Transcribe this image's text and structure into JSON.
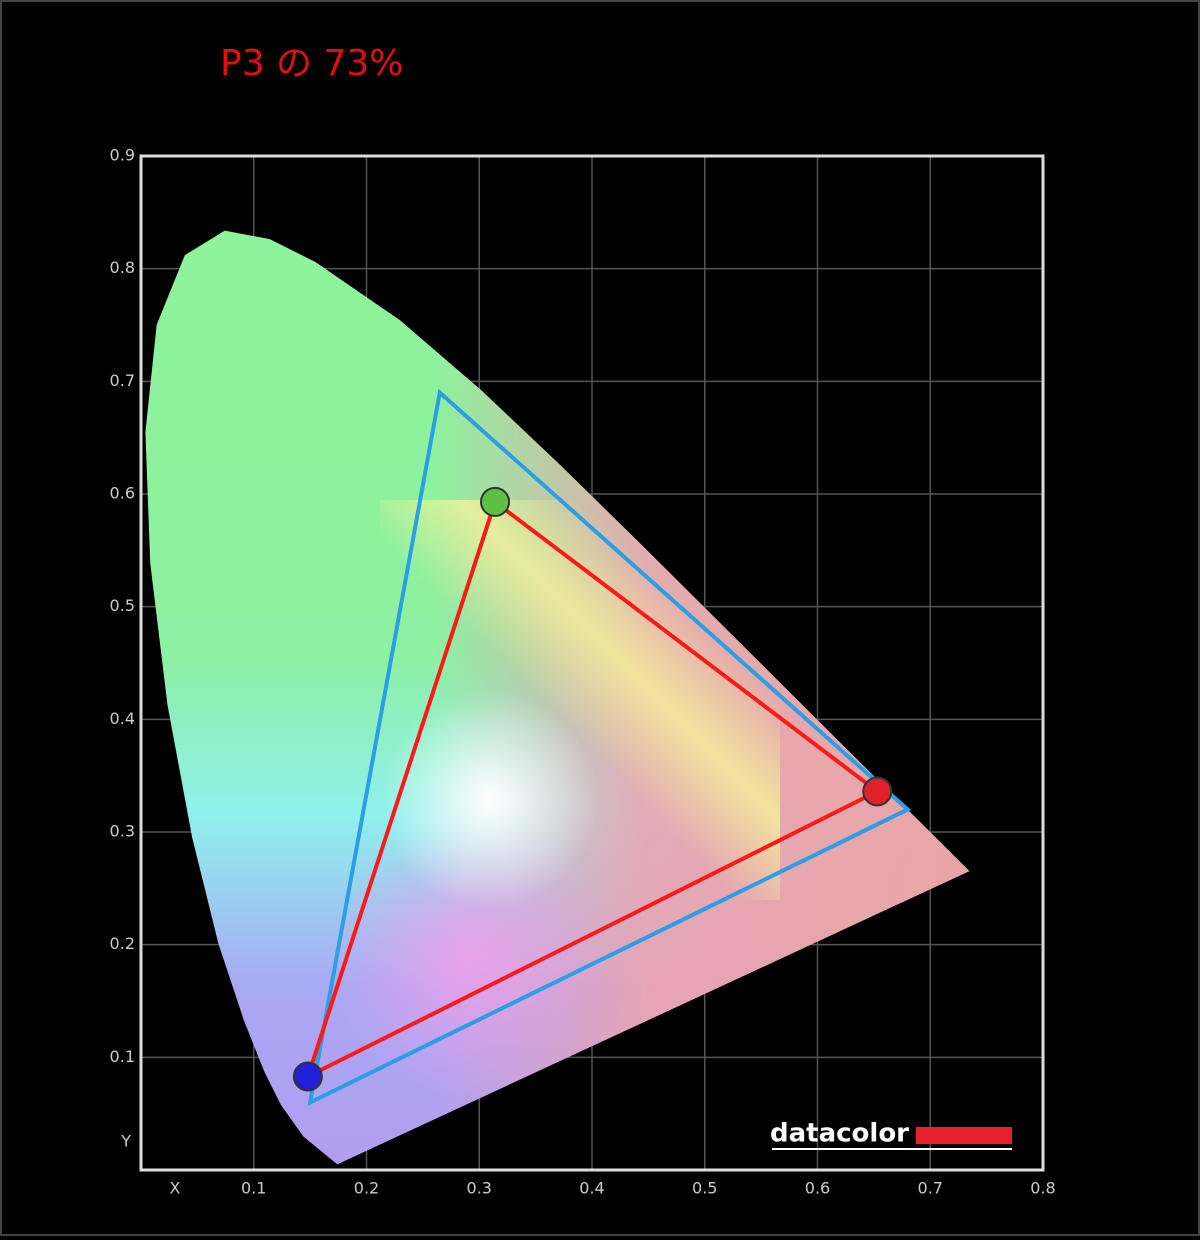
{
  "chart_data": {
    "type": "gamut",
    "title": "P3 の 73%",
    "xlabel": "X",
    "ylabel": "Y",
    "xlim": [
      0,
      0.8
    ],
    "ylim": [
      0,
      0.9
    ],
    "xticks": [
      0.1,
      0.2,
      0.3,
      0.4,
      0.5,
      0.6,
      0.7,
      0.8
    ],
    "yticks": [
      0.1,
      0.2,
      0.3,
      0.4,
      0.5,
      0.6,
      0.7,
      0.8,
      0.9
    ],
    "grid": true,
    "locus": {
      "x": [
        0.1741,
        0.144,
        0.1241,
        0.1096,
        0.0913,
        0.0687,
        0.0454,
        0.0235,
        0.0082,
        0.0039,
        0.0139,
        0.0389,
        0.0743,
        0.1142,
        0.1547,
        0.2296,
        0.3016,
        0.3731,
        0.4441,
        0.5125,
        0.5752,
        0.627,
        0.6915,
        0.719,
        0.7347
      ],
      "y": [
        0.005,
        0.0297,
        0.0578,
        0.0868,
        0.1327,
        0.2007,
        0.295,
        0.4127,
        0.5384,
        0.6548,
        0.7502,
        0.812,
        0.8338,
        0.8262,
        0.8059,
        0.7543,
        0.6923,
        0.6245,
        0.5547,
        0.4866,
        0.4242,
        0.3725,
        0.3083,
        0.2809,
        0.2653
      ]
    },
    "series": [
      {
        "color": "#2a9fe6",
        "x": [
          0.68,
          0.265,
          0.15
        ],
        "y": [
          0.32,
          0.69,
          0.06
        ]
      },
      {
        "color": "#ff1a1a",
        "x": [
          0.653,
          0.314,
          0.148
        ],
        "y": [
          0.336,
          0.593,
          0.083
        ],
        "point_colors": [
          "#e0202a",
          "#5cc040",
          "#2020d8"
        ]
      }
    ],
    "logo": "datacolor"
  }
}
